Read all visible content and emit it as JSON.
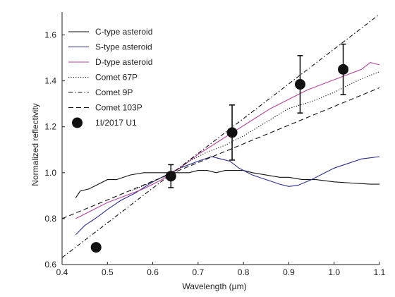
{
  "chart_data": {
    "type": "line",
    "title": "",
    "xlabel": "Wavelength (µm)",
    "ylabel": "Normalized reflectivity",
    "xlim": [
      0.4,
      1.1
    ],
    "ylim": [
      0.6,
      1.7
    ],
    "x_ticks": [
      "0.4",
      "0.5",
      "0.6",
      "0.7",
      "0.8",
      "0.9",
      "1.0",
      "1.1"
    ],
    "y_ticks": [
      "0.6",
      "0.8",
      "1.0",
      "1.2",
      "1.4",
      "1.6"
    ],
    "grid": false,
    "legend_position": "top-left",
    "series": [
      {
        "name": "C-type asteroid",
        "style": "solid",
        "color": "#111111",
        "x": [
          0.43,
          0.44,
          0.46,
          0.48,
          0.5,
          0.52,
          0.55,
          0.58,
          0.6,
          0.62,
          0.64,
          0.66,
          0.68,
          0.7,
          0.72,
          0.74,
          0.76,
          0.78,
          0.8,
          0.82,
          0.85,
          0.88,
          0.9,
          0.93,
          0.96,
          1.0,
          1.04,
          1.08,
          1.1
        ],
        "y": [
          0.89,
          0.92,
          0.93,
          0.95,
          0.97,
          0.97,
          0.99,
          1.0,
          1.0,
          1.0,
          1.0,
          1.0,
          1.0,
          1.01,
          1.01,
          1.0,
          1.01,
          1.01,
          1.01,
          1.0,
          0.99,
          0.98,
          0.98,
          0.97,
          0.97,
          0.96,
          0.955,
          0.95,
          0.95
        ]
      },
      {
        "name": "S-type asteroid",
        "style": "solid",
        "color": "#2b2b8f",
        "x": [
          0.43,
          0.45,
          0.48,
          0.5,
          0.53,
          0.56,
          0.6,
          0.63,
          0.66,
          0.7,
          0.73,
          0.75,
          0.77,
          0.79,
          0.82,
          0.85,
          0.88,
          0.9,
          0.92,
          0.95,
          0.98,
          1.0,
          1.03,
          1.06,
          1.08,
          1.1
        ],
        "y": [
          0.73,
          0.77,
          0.81,
          0.84,
          0.88,
          0.91,
          0.96,
          0.99,
          1.02,
          1.05,
          1.07,
          1.06,
          1.05,
          1.02,
          0.99,
          0.97,
          0.95,
          0.94,
          0.945,
          0.97,
          1.0,
          1.02,
          1.04,
          1.06,
          1.065,
          1.07
        ]
      },
      {
        "name": "D-type asteroid",
        "style": "solid",
        "color": "#b5429c",
        "x": [
          0.43,
          0.46,
          0.5,
          0.54,
          0.58,
          0.62,
          0.66,
          0.7,
          0.74,
          0.78,
          0.82,
          0.86,
          0.9,
          0.94,
          0.98,
          1.02,
          1.06,
          1.08,
          1.1
        ],
        "y": [
          0.8,
          0.83,
          0.87,
          0.9,
          0.93,
          0.97,
          1.02,
          1.08,
          1.13,
          1.18,
          1.23,
          1.28,
          1.32,
          1.36,
          1.39,
          1.42,
          1.45,
          1.48,
          1.47
        ]
      },
      {
        "name": "Comet 67P",
        "style": "dotted",
        "color": "#111111",
        "x": [
          0.55,
          0.6,
          0.65,
          0.68,
          0.72,
          0.76,
          0.8,
          0.85,
          0.9,
          0.95,
          1.0,
          1.05,
          1.1
        ],
        "y": [
          0.92,
          0.96,
          1.01,
          1.05,
          1.09,
          1.12,
          1.16,
          1.22,
          1.28,
          1.31,
          1.35,
          1.4,
          1.44
        ]
      },
      {
        "name": "Comet 9P",
        "style": "dash-dot",
        "color": "#111111",
        "x": [
          0.4,
          1.1
        ],
        "y": [
          0.63,
          1.69
        ]
      },
      {
        "name": "Comet 103P",
        "style": "dashed",
        "color": "#111111",
        "x": [
          0.4,
          1.1
        ],
        "y": [
          0.8,
          1.37
        ]
      }
    ],
    "points": {
      "name": "1I/2017 U1",
      "color": "#111111",
      "x": [
        0.475,
        0.64,
        0.775,
        0.925,
        1.02
      ],
      "y": [
        0.675,
        0.985,
        1.175,
        1.385,
        1.45
      ],
      "err_low": [
        0,
        0.05,
        0.12,
        0.125,
        0.11
      ],
      "err_high": [
        0,
        0.05,
        0.12,
        0.125,
        0.11
      ]
    }
  }
}
